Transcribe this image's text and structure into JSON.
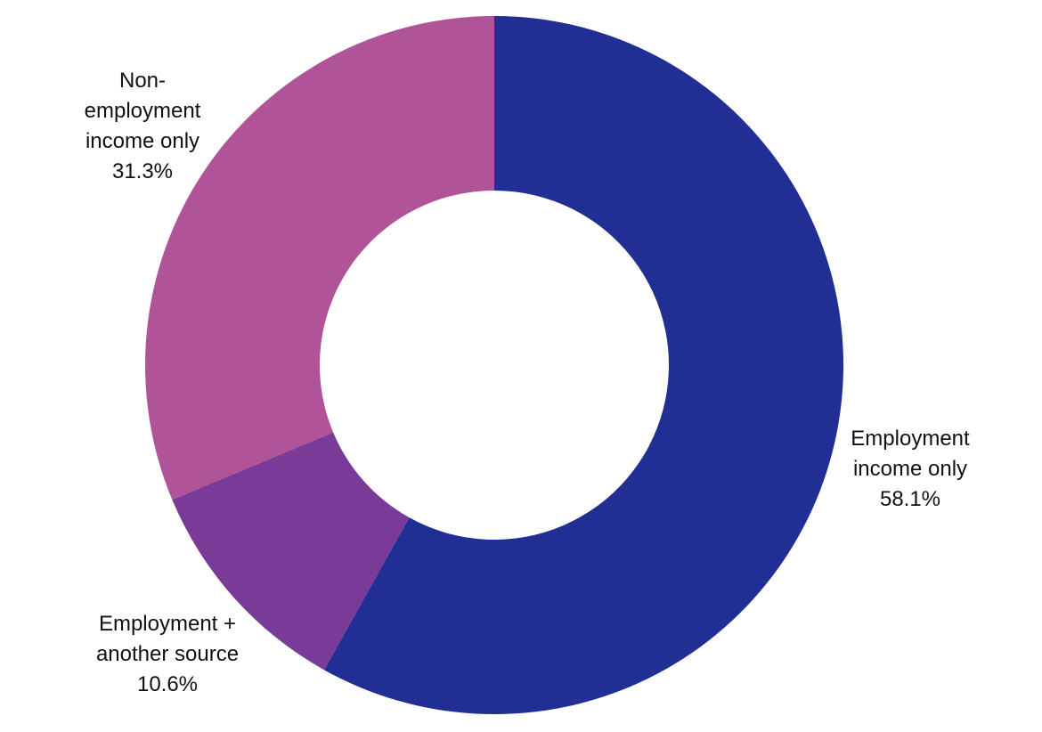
{
  "chart_data": {
    "type": "pie",
    "variant": "donut",
    "title": "",
    "slices": [
      {
        "category": "Employment income only",
        "label_lines": [
          "Employment",
          "income only"
        ],
        "value": 58.1,
        "value_label": "58.1%",
        "color": "#212E93"
      },
      {
        "category": "Employment + another source",
        "label_lines": [
          "Employment +",
          "another source"
        ],
        "value": 10.6,
        "value_label": "10.6%",
        "color": "#7A3A98"
      },
      {
        "category": "Non-employment income only",
        "label_lines": [
          "Non-",
          "employment",
          "income only"
        ],
        "value": 31.3,
        "value_label": "31.3%",
        "color": "#B05399"
      }
    ],
    "start_angle": "12 o'clock",
    "direction": "clockwise",
    "legend": "none",
    "labels": "outside"
  }
}
